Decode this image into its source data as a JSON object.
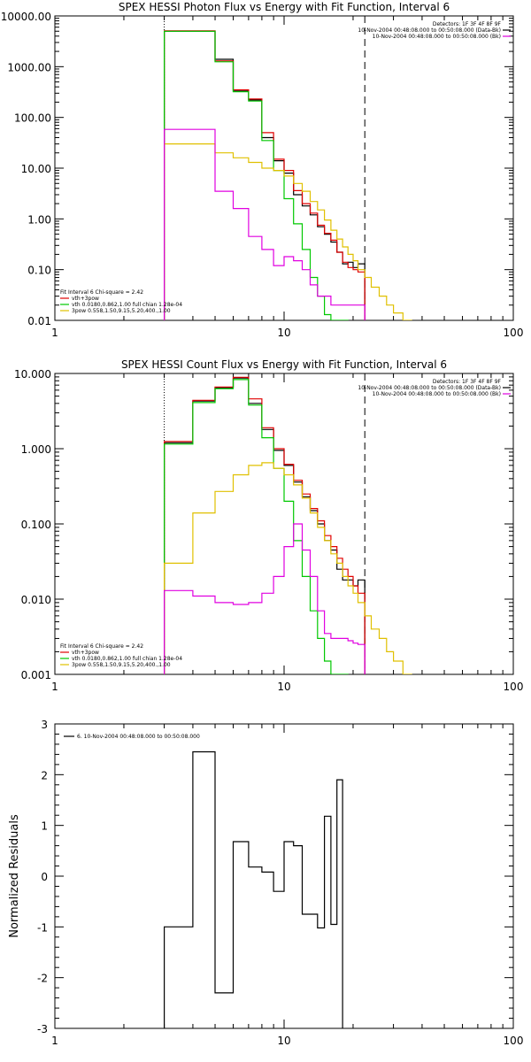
{
  "chart_data": [
    {
      "type": "line",
      "title": "SPEX HESSI Photon Flux vs Energy with Fit Function, Interval 6",
      "x_scale": "log",
      "y_scale": "log",
      "xlim": [
        1,
        100
      ],
      "ylim": [
        0.01,
        10000
      ],
      "x_tick_labels": [
        "1",
        "10",
        "100"
      ],
      "y_tick_labels": [
        "0.01",
        "0.10",
        "1.00",
        "10.00",
        "100.00",
        "1000.00",
        "10000.00"
      ],
      "top_right_text": [
        "Detectors: 1F 3F 4F 8F 9F",
        "10-Nov-2004 00:48:08.000 to 00:50:08.000 (Data-Bk)",
        "10-Nov-2004 00:48:08.000 to 00:50:08.000 (Bk)"
      ],
      "legend_header": "Fit Interval 6   Chi-square = 2.42",
      "legend_entries": [
        "vth+3pow",
        "vth 0.0180,0.862,1.00  full chian 1.28e-04",
        "3pow 0.558,1.50,9.15,5.20,400.,1.00"
      ],
      "vlines": [
        3.0,
        22.5
      ],
      "series": [
        {
          "name": "Data-Bk",
          "color": "#000000",
          "edges": [
            3,
            4,
            5,
            6,
            7,
            8,
            9,
            10,
            11,
            12,
            13,
            14,
            15,
            16,
            17,
            18,
            19,
            20,
            21,
            22.5
          ],
          "values": [
            5000,
            5000,
            1400,
            330,
            220,
            40,
            14,
            8,
            3.0,
            1.8,
            1.2,
            0.7,
            0.5,
            0.35,
            0.22,
            0.13,
            0.14,
            0.11,
            0.13
          ]
        },
        {
          "name": "vth+3pow",
          "color": "#e00000",
          "edges": [
            3,
            4,
            5,
            6,
            7,
            8,
            9,
            10,
            11,
            12,
            13,
            14,
            15,
            16,
            17,
            18,
            19,
            20,
            21,
            22.5
          ],
          "values": [
            5100,
            5100,
            1300,
            350,
            230,
            50,
            15,
            9,
            3.6,
            2.0,
            1.3,
            0.75,
            0.52,
            0.38,
            0.22,
            0.14,
            0.11,
            0.1,
            0.09
          ]
        },
        {
          "name": "vth",
          "color": "#00c800",
          "edges": [
            3,
            4,
            5,
            6,
            7,
            8,
            9,
            10,
            11,
            12,
            13,
            14,
            15,
            16,
            17,
            18,
            19
          ],
          "values": [
            5000,
            5000,
            1250,
            320,
            210,
            35,
            9,
            2.5,
            0.8,
            0.25,
            0.07,
            0.03,
            0.013,
            0.01,
            0.01,
            0.01
          ]
        },
        {
          "name": "3pow",
          "color": "#e0c000",
          "edges": [
            3,
            4,
            5,
            6,
            7,
            8,
            9,
            10,
            11,
            12,
            13,
            14,
            15,
            16,
            17,
            18,
            19,
            20,
            21,
            22.5,
            24,
            26,
            28,
            30,
            33,
            36
          ],
          "values": [
            30,
            30,
            20,
            16,
            13,
            10,
            9,
            7,
            5,
            3.5,
            2.2,
            1.5,
            0.95,
            0.6,
            0.4,
            0.28,
            0.2,
            0.15,
            0.1,
            0.07,
            0.045,
            0.03,
            0.02,
            0.014,
            0.01
          ]
        },
        {
          "name": "Bk",
          "color": "#e000e0",
          "edges": [
            3,
            4,
            5,
            6,
            7,
            8,
            9,
            10,
            11,
            12,
            13,
            14,
            15,
            16,
            17,
            18,
            19,
            20,
            21,
            22.5
          ],
          "values": [
            58,
            58,
            3.5,
            1.6,
            0.45,
            0.25,
            0.12,
            0.18,
            0.15,
            0.1,
            0.05,
            0.03,
            0.03,
            0.02,
            0.02,
            0.02,
            0.02,
            0.02,
            0.02
          ]
        }
      ]
    },
    {
      "type": "line",
      "title": "SPEX HESSI Count Flux vs Energy with Fit Function, Interval 6",
      "x_scale": "log",
      "y_scale": "log",
      "xlim": [
        1,
        100
      ],
      "ylim": [
        0.001,
        10
      ],
      "x_tick_labels": [
        "1",
        "10",
        "100"
      ],
      "y_tick_labels": [
        "0.001",
        "0.010",
        "0.100",
        "1.000",
        "10.000"
      ],
      "top_right_text": [
        "Detectors: 1F 3F 4F 8F 9F",
        "10-Nov-2004 00:48:08.000 to 00:50:08.000 (Data-Bk)",
        "10-Nov-2004 00:48:08.000 to 00:50:08.000 (Bk)"
      ],
      "legend_header": "Fit Interval 6   Chi-square = 2.42",
      "legend_entries": [
        "vth+3pow",
        "vth 0.0180,0.862,1.00  full chian 1.28e-04",
        "3pow 0.558,1.50,9.15,5.20,400.,1.00"
      ],
      "vlines": [
        3.0,
        22.5
      ],
      "series": [
        {
          "name": "Data-Bk",
          "color": "#000000",
          "edges": [
            3,
            4,
            5,
            6,
            7,
            8,
            9,
            10,
            11,
            12,
            13,
            14,
            15,
            16,
            17,
            18,
            19,
            20,
            21,
            22.5
          ],
          "values": [
            1.2,
            4.3,
            6.5,
            8.7,
            4.0,
            1.8,
            0.95,
            0.6,
            0.36,
            0.23,
            0.15,
            0.1,
            0.06,
            0.045,
            0.025,
            0.018,
            0.018,
            0.015,
            0.018
          ]
        },
        {
          "name": "vth+3pow",
          "color": "#e00000",
          "edges": [
            3,
            4,
            5,
            6,
            7,
            8,
            9,
            10,
            11,
            12,
            13,
            14,
            15,
            16,
            17,
            18,
            19,
            20,
            21,
            22.5
          ],
          "values": [
            1.25,
            4.4,
            6.6,
            8.9,
            4.6,
            1.9,
            1.0,
            0.62,
            0.38,
            0.25,
            0.16,
            0.11,
            0.07,
            0.05,
            0.035,
            0.025,
            0.02,
            0.015,
            0.012
          ]
        },
        {
          "name": "vth",
          "color": "#00c800",
          "edges": [
            3,
            4,
            5,
            6,
            7,
            8,
            9,
            10,
            11,
            12,
            13,
            14,
            15,
            16,
            17,
            18,
            19
          ],
          "values": [
            1.15,
            4.1,
            6.3,
            8.3,
            3.8,
            1.4,
            0.55,
            0.2,
            0.06,
            0.02,
            0.007,
            0.003,
            0.0015,
            0.001,
            0.001,
            0.001
          ]
        },
        {
          "name": "3pow",
          "color": "#e0c000",
          "edges": [
            3,
            4,
            5,
            6,
            7,
            8,
            9,
            10,
            11,
            12,
            13,
            14,
            15,
            16,
            17,
            18,
            19,
            20,
            21,
            22.5,
            24,
            26,
            28,
            30,
            33,
            36
          ],
          "values": [
            0.03,
            0.14,
            0.27,
            0.45,
            0.6,
            0.65,
            0.55,
            0.45,
            0.33,
            0.22,
            0.14,
            0.09,
            0.06,
            0.04,
            0.03,
            0.02,
            0.015,
            0.012,
            0.009,
            0.006,
            0.004,
            0.003,
            0.002,
            0.0015,
            0.001
          ]
        },
        {
          "name": "Bk",
          "color": "#e000e0",
          "edges": [
            3,
            4,
            5,
            6,
            7,
            8,
            9,
            10,
            11,
            12,
            13,
            14,
            15,
            16,
            17,
            18,
            19,
            20,
            21,
            22.5
          ],
          "values": [
            0.013,
            0.011,
            0.009,
            0.0085,
            0.009,
            0.012,
            0.02,
            0.05,
            0.1,
            0.045,
            0.02,
            0.007,
            0.0035,
            0.003,
            0.003,
            0.003,
            0.0028,
            0.0026,
            0.0025
          ]
        }
      ]
    },
    {
      "type": "line",
      "title": "",
      "x_scale": "log",
      "y_scale": "linear",
      "xlim": [
        1,
        100
      ],
      "ylim": [
        -3,
        3
      ],
      "ylabel": "Normalized Residuals",
      "x_tick_labels": [
        "1",
        "10",
        "100"
      ],
      "y_tick_labels": [
        "-3",
        "-2",
        "-1",
        "0",
        "1",
        "2",
        "3"
      ],
      "legend_entries": [
        "6. 10-Nov-2004 00:48:08.000 to 00:50:08.000"
      ],
      "series": [
        {
          "name": "6. 10-Nov-2004 00:48:08.000 to 00:50:08.000",
          "color": "#000000",
          "edges": [
            3,
            4,
            5,
            6,
            7,
            8,
            9,
            10,
            11,
            12,
            13,
            14,
            15,
            16,
            17,
            18,
            19,
            20,
            21,
            22.5
          ],
          "values": [
            -1.0,
            2.45,
            -2.3,
            0.68,
            0.18,
            0.08,
            -0.3,
            0.68,
            0.6,
            -0.75,
            -0.75,
            -1.02,
            1.18,
            -0.95,
            1.9,
            0,
            0,
            0,
            0
          ],
          "start_from": -3,
          "end_to": -3,
          "trim_to": 15
        }
      ]
    }
  ]
}
